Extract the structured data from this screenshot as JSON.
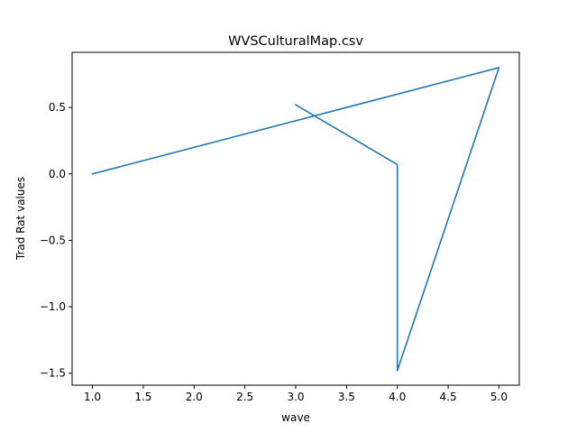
{
  "chart_data": {
    "type": "line",
    "title": "WVSCulturalMap.csv",
    "xlabel": "wave",
    "ylabel": "Trad Rat values",
    "xlim": [
      0.8,
      5.2
    ],
    "ylim": [
      -1.59,
      0.915
    ],
    "x_ticks": [
      1.0,
      1.5,
      2.0,
      2.5,
      3.0,
      3.5,
      4.0,
      4.5,
      5.0
    ],
    "x_tick_labels": [
      "1.0",
      "1.5",
      "2.0",
      "2.5",
      "3.0",
      "3.5",
      "4.0",
      "4.5",
      "5.0"
    ],
    "y_ticks": [
      0.5,
      0.0,
      -0.5,
      -1.0,
      -1.5
    ],
    "y_tick_labels": [
      "0.5",
      "0.0",
      "−0.5",
      "−1.0",
      "−1.5"
    ],
    "grid": false,
    "legend": "none",
    "series": [
      {
        "color": "#1f77b4",
        "x": [
          1,
          5,
          4,
          4,
          3
        ],
        "y": [
          0.0,
          0.8,
          -1.48,
          0.07,
          0.52
        ]
      }
    ]
  }
}
